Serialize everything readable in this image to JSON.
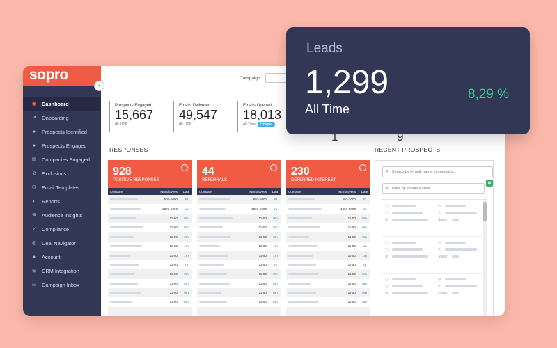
{
  "brand": {
    "logo_text": "sopro",
    "accent": "#f15b43",
    "navy": "#333756"
  },
  "sidebar": {
    "items": [
      {
        "label": "Dashboard",
        "icon": "dashboard-icon",
        "active": true
      },
      {
        "label": "Onboarding",
        "icon": "chart-line-icon"
      },
      {
        "label": "Prospects Identified",
        "icon": "circle-icon"
      },
      {
        "label": "Prospects Engaged",
        "icon": "circle-icon"
      },
      {
        "label": "Companies Engaged",
        "icon": "building-icon"
      },
      {
        "label": "Exclusions",
        "icon": "ban-icon"
      },
      {
        "label": "Email Templates",
        "icon": "email-icon"
      },
      {
        "label": "Reports",
        "icon": "reports-icon"
      },
      {
        "label": "Audience Insights",
        "icon": "insights-icon"
      },
      {
        "label": "Compliance",
        "icon": "compliance-icon"
      },
      {
        "label": "Deal Navigator",
        "icon": "compass-icon"
      },
      {
        "label": "Account",
        "icon": "account-icon"
      },
      {
        "label": "CRM Integration",
        "icon": "integration-icon"
      },
      {
        "label": "Campaign Inbox",
        "icon": "inbox-icon"
      }
    ]
  },
  "header": {
    "campaign_label": "Campaign:"
  },
  "stats": [
    {
      "label": "Prospects Engaged",
      "value": "15,667",
      "sub": "All Time"
    },
    {
      "label": "Emails Delivered",
      "value": "49,547",
      "sub": "All Time"
    },
    {
      "label": "Emails Opened",
      "value": "18,013",
      "sub": "All Time",
      "badge": "Unique"
    }
  ],
  "partial_digits": [
    "1",
    "9"
  ],
  "responses": {
    "title": "RESPONSES",
    "columns": [
      "Company",
      "#Employees",
      "Date"
    ],
    "cards": [
      {
        "count": "928",
        "caption": "POSITIVE RESPONSES",
        "rows": [
          [
            "501-1000",
            "3d"
          ],
          [
            "1001-5000",
            "1w"
          ],
          [
            "11-50",
            "0m"
          ],
          [
            "11-50",
            "0m"
          ],
          [
            "11-50",
            "0m"
          ],
          [
            "11-50",
            "1m"
          ],
          [
            "11-50",
            "1m"
          ],
          [
            "11-50",
            "2y"
          ],
          [
            "11-50",
            "0m"
          ],
          [
            "11-50",
            "0m"
          ],
          [
            "11-50",
            "0m"
          ],
          [
            "11-50",
            "0m"
          ]
        ]
      },
      {
        "count": "44",
        "caption": "REFERRALS",
        "rows": [
          [
            "501-1000",
            "3d"
          ],
          [
            "1001-5000",
            "1w"
          ],
          [
            "11-50",
            "0m"
          ],
          [
            "11-50",
            "0m"
          ],
          [
            "11-50",
            "0m"
          ],
          [
            "11-50",
            "1m"
          ],
          [
            "11-50",
            "1m"
          ],
          [
            "11-50",
            "2y"
          ],
          [
            "11-50",
            "0m"
          ],
          [
            "11-50",
            "0m"
          ],
          [
            "11-50",
            "0m"
          ],
          [
            "11-50",
            "0m"
          ]
        ]
      },
      {
        "count": "230",
        "caption": "DEFERRED INTEREST",
        "rows": [
          [
            "501-1000",
            "3d"
          ],
          [
            "1001-5000",
            "1w"
          ],
          [
            "11-50",
            "0m"
          ],
          [
            "11-50",
            "0m"
          ],
          [
            "11-50",
            "0m"
          ],
          [
            "11-50",
            "1m"
          ],
          [
            "11-50",
            "1m"
          ],
          [
            "11-50",
            "2y"
          ],
          [
            "11-50",
            "0m"
          ],
          [
            "11-50",
            "0m"
          ],
          [
            "11-50",
            "0m"
          ],
          [
            "11-50",
            "0m"
          ]
        ]
      }
    ]
  },
  "recent_prospects": {
    "title": "RECENT PROSPECTS",
    "search_placeholder": "Search by e-mail, name or company...",
    "filter_placeholder": "Filter by sender e-mail...",
    "stage_label": "Stage:"
  },
  "leads": {
    "title": "Leads",
    "value": "1,299",
    "period": "All Time",
    "percent": "8,29 %"
  }
}
